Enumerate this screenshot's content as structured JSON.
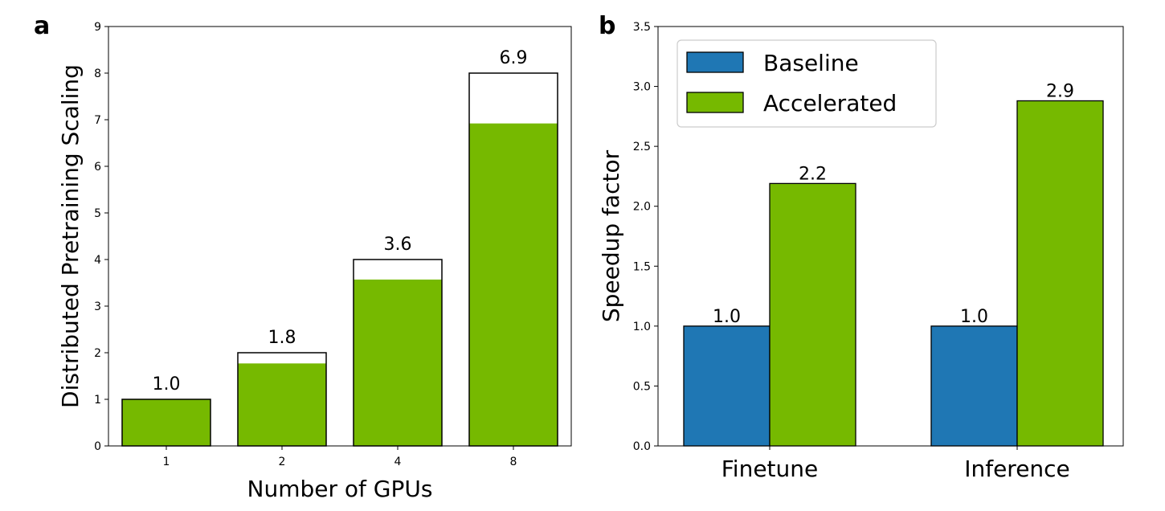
{
  "colors": {
    "green": "#76b900",
    "blue": "#1f77b4"
  },
  "chart_data": [
    {
      "panel": "a",
      "type": "bar",
      "xlabel": "Number of GPUs",
      "ylabel": "Distributed Pretraining Scaling",
      "categories": [
        "1",
        "2",
        "4",
        "8"
      ],
      "ideal_values": [
        1,
        2,
        4,
        8
      ],
      "values": [
        1.0,
        1.77,
        3.57,
        6.92
      ],
      "data_labels": [
        "1.0",
        "1.8",
        "3.6",
        "6.9"
      ],
      "ylim": [
        0,
        9
      ],
      "yticks": [
        "0",
        "1",
        "2",
        "3",
        "4",
        "5",
        "6",
        "7",
        "8",
        "9"
      ],
      "grid": false
    },
    {
      "panel": "b",
      "type": "bar",
      "xlabel": "",
      "ylabel": "Speedup factor",
      "categories": [
        "Finetune",
        "Inference"
      ],
      "series": [
        {
          "name": "Baseline",
          "values": [
            1.0,
            1.0
          ],
          "data_labels": [
            "1.0",
            "1.0"
          ]
        },
        {
          "name": "Accelerated",
          "values": [
            2.19,
            2.88
          ],
          "data_labels": [
            "2.2",
            "2.9"
          ]
        }
      ],
      "ylim": [
        0,
        3.5
      ],
      "yticks": [
        "0.0",
        "0.5",
        "1.0",
        "1.5",
        "2.0",
        "2.5",
        "3.0",
        "3.5"
      ],
      "legend": "top-left",
      "grid": false
    }
  ]
}
